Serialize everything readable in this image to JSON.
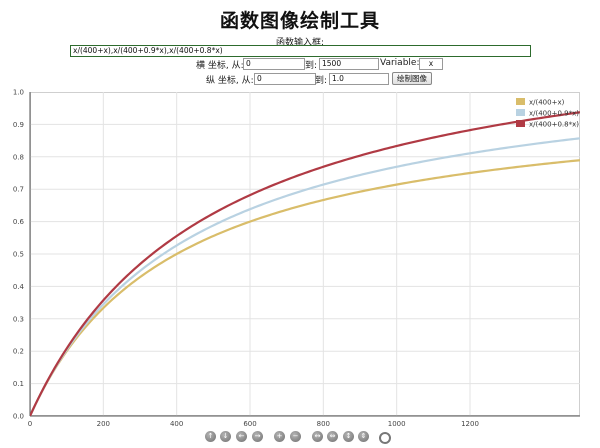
{
  "app": {
    "title": "函数图像绘制工具"
  },
  "form": {
    "input_label": "函数输入框:",
    "expression": "x/(400+x),x/(400+0.9*x),x/(400+0.8*x)",
    "x_label": "横 坐标, 从:",
    "x_from": "0",
    "x_to_label": "到:",
    "x_to": "1500",
    "variable_label": "Variable:",
    "variable": "x",
    "y_label": "纵 坐标, 从:",
    "y_from": "0",
    "y_to_label": "到:",
    "y_to": "1.0",
    "draw_button": "绘制图像"
  },
  "chart_data": {
    "type": "line",
    "xlim": [
      0,
      1500
    ],
    "ylim": [
      0,
      1.0
    ],
    "x_ticks": [
      0,
      200,
      400,
      600,
      800,
      1000,
      1200
    ],
    "x_tick_labels": [
      "0",
      "200",
      "400",
      "600",
      "800",
      "1000",
      "1200"
    ],
    "y_ticks": [
      0,
      0.1,
      0.2,
      0.3,
      0.4,
      0.5,
      0.6,
      0.7,
      0.8,
      0.9,
      1.0
    ],
    "y_tick_labels": [
      "0.0",
      "0.1",
      "0.2",
      "0.3",
      "0.4",
      "0.5",
      "0.6",
      "0.7",
      "0.8",
      "0.9",
      "1.0"
    ],
    "grid": true,
    "legend_position": "top-right",
    "series": [
      {
        "name": "x/(400+x)",
        "a": 1.0,
        "color": "#d9bd6a"
      },
      {
        "name": "x/(400+0.9*x)",
        "a": 0.9,
        "color": "#b9d2e2"
      },
      {
        "name": "x/(400+0.8*x)",
        "a": 0.8,
        "color": "#b03a44"
      }
    ]
  },
  "toolbar": {
    "icons": [
      "pan-up-icon",
      "pan-down-icon",
      "pan-left-icon",
      "pan-right-icon",
      "zoom-in-icon",
      "zoom-out-icon",
      "zoom-in-x-icon",
      "zoom-out-x-icon",
      "zoom-in-y-icon",
      "zoom-out-y-icon",
      "reset-view-icon"
    ]
  }
}
